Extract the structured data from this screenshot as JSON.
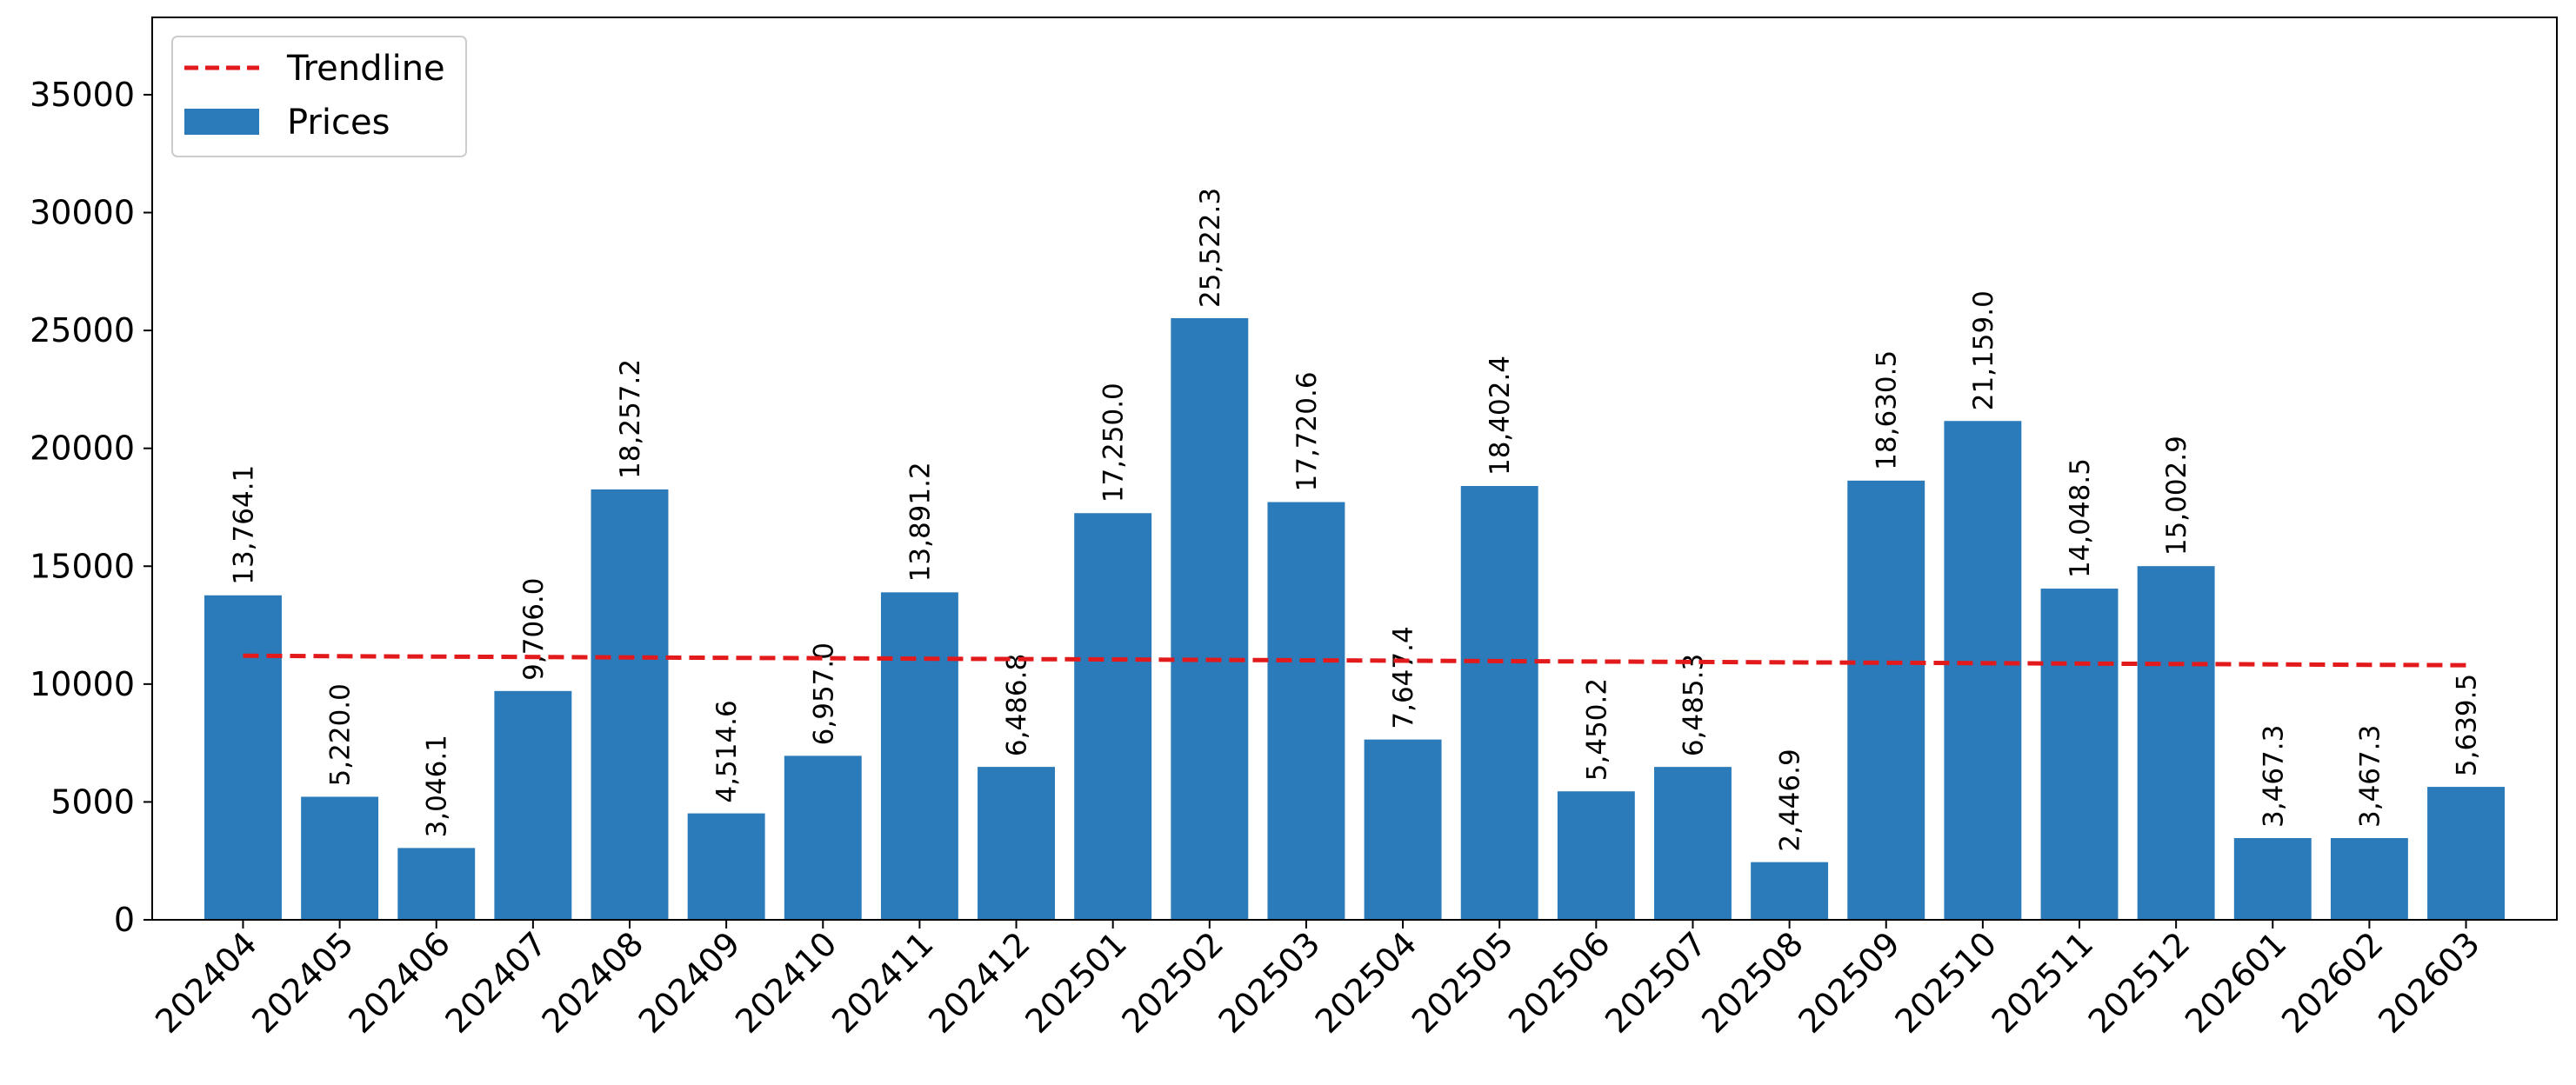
{
  "chart_data": {
    "type": "bar",
    "title": "",
    "xlabel": "",
    "ylabel": "",
    "categories": [
      "202404",
      "202405",
      "202406",
      "202407",
      "202408",
      "202409",
      "202410",
      "202411",
      "202412",
      "202501",
      "202502",
      "202503",
      "202504",
      "202505",
      "202506",
      "202507",
      "202508",
      "202509",
      "202510",
      "202511",
      "202512",
      "202601",
      "202602",
      "202603"
    ],
    "series": [
      {
        "name": "Prices",
        "type": "bar",
        "color": "#2b7bba",
        "values": [
          13764.1,
          5220.0,
          3046.1,
          9706.0,
          18257.2,
          4514.6,
          6957.0,
          13891.2,
          6486.8,
          17250.0,
          25522.3,
          17720.6,
          7647.4,
          18402.4,
          5450.2,
          6485.3,
          2446.9,
          18630.5,
          21159.0,
          14048.5,
          15002.9,
          3467.3,
          3467.3,
          5639.5
        ]
      },
      {
        "name": "Trendline",
        "type": "line",
        "style": "dashed",
        "color": "#e31a1c",
        "start": 11200,
        "end": 10800
      }
    ],
    "data_labels": [
      "13,764.1",
      "5,220.0",
      "3,046.1",
      "9,706.0",
      "18,257.2",
      "4,514.6",
      "6,957.0",
      "13,891.2",
      "6,486.8",
      "17,250.0",
      "25,522.3",
      "17,720.6",
      "7,647.4",
      "18,402.4",
      "5,450.2",
      "6,485.3",
      "2,446.9",
      "18,630.5",
      "21,159.0",
      "14,048.5",
      "15,002.9",
      "3,467.3",
      "3,467.3",
      "5,639.5"
    ],
    "yticks": [
      0,
      5000,
      10000,
      15000,
      20000,
      25000,
      30000,
      35000
    ],
    "ylim": [
      0,
      38280
    ],
    "grid": false,
    "legend": {
      "position": "upper-left",
      "entries": [
        "Trendline",
        "Prices"
      ]
    }
  }
}
